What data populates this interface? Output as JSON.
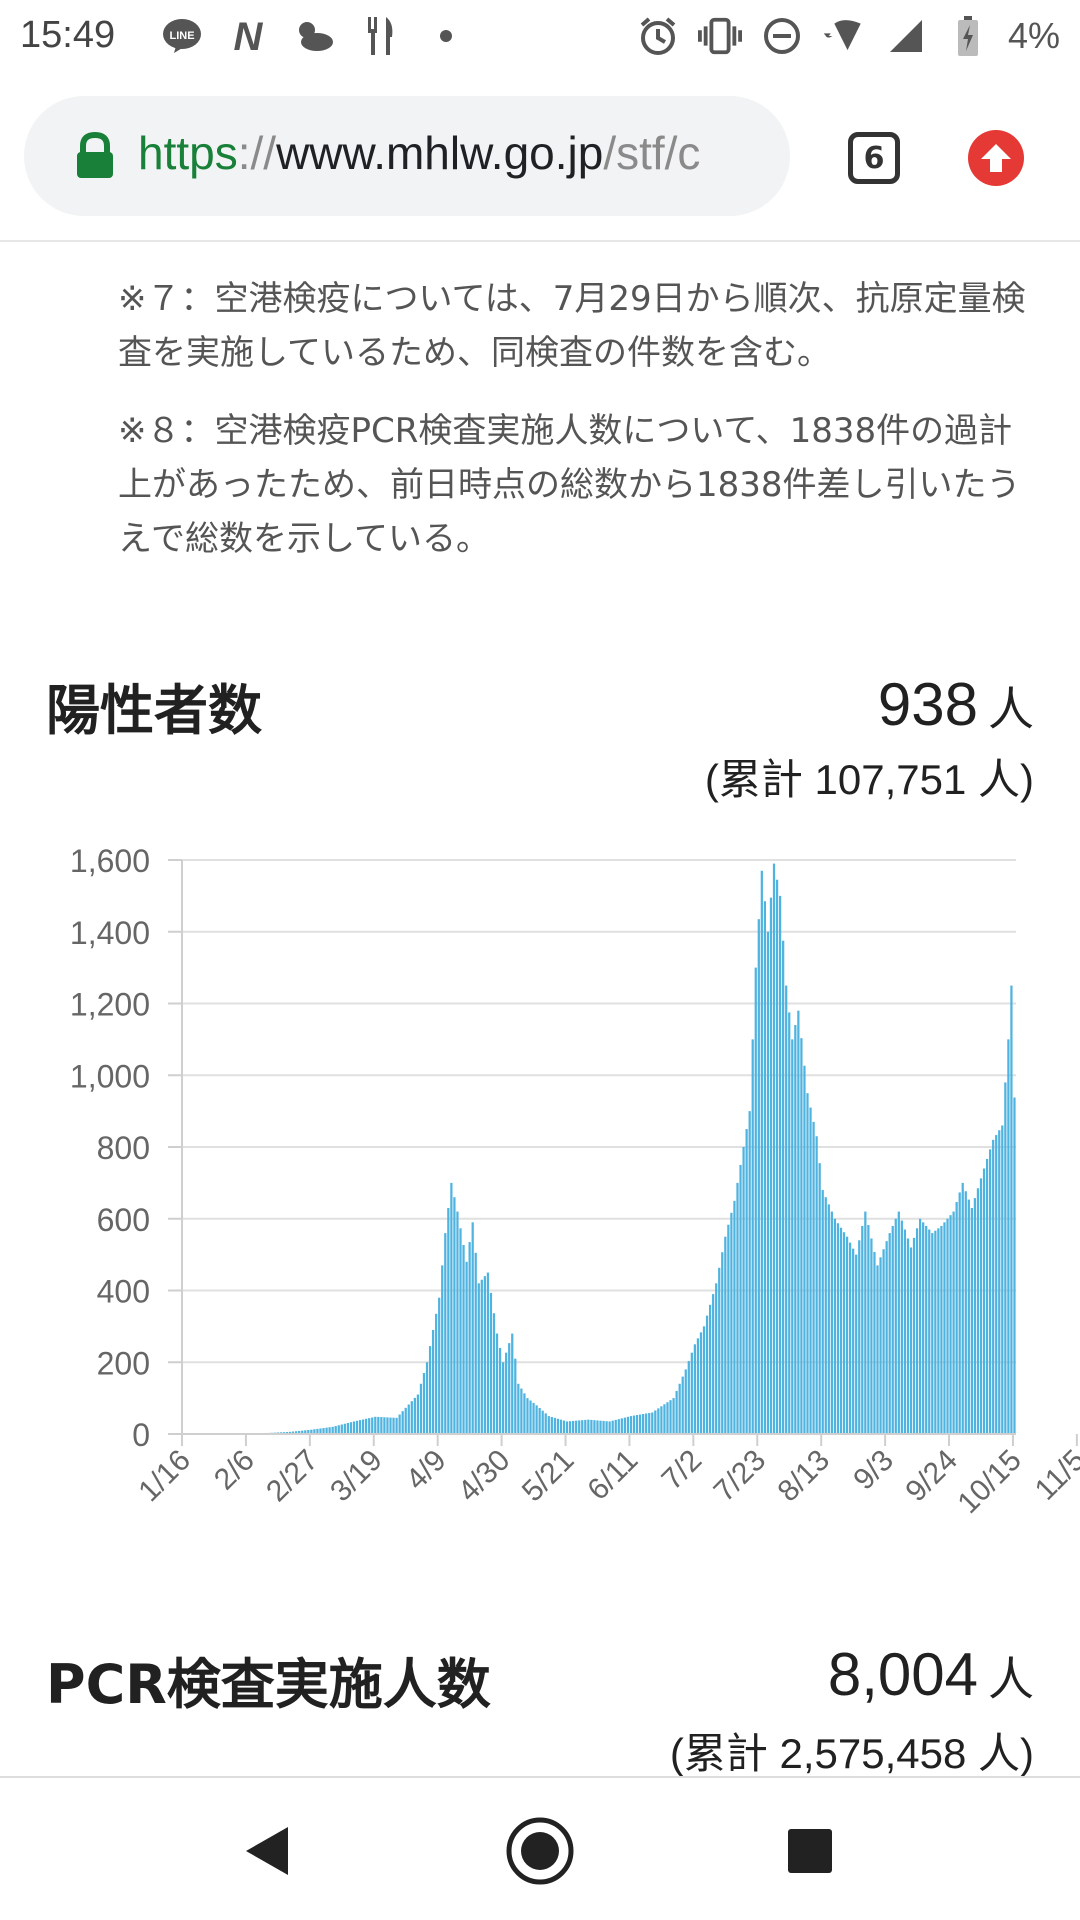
{
  "status_bar": {
    "time": "15:49",
    "left_icons": [
      "line-icon",
      "n-icon",
      "weather-icon",
      "restaurant-icon",
      "dot-icon"
    ],
    "right_icons": [
      "alarm-icon",
      "vibrate-icon",
      "dnd-icon",
      "wifi-icon",
      "signal-icon",
      "battery-icon"
    ],
    "battery": "4%"
  },
  "browser": {
    "url_scheme": "https",
    "url_sep": "://",
    "url_host": "www.mhlw.go.jp",
    "url_rest": "/stf/c",
    "tab_count": "6",
    "accent_secure": "#188038",
    "update_color": "#e53935"
  },
  "notes": [
    "※７：空港検疫については、7月29日から順次、抗原定量検査を実施しているため、同検査の件数を含む。",
    "※８：空港検疫PCR検査実施人数について、1838件の過計上があったため、前日時点の総数から1838件差し引いたうえで総数を示している。"
  ],
  "positives": {
    "title": "陽性者数",
    "value": "938",
    "unit": "人",
    "cumulative": "(累計 107,751 人)"
  },
  "pcr": {
    "title": "PCR検査実施人数",
    "value": "8,004",
    "unit": "人",
    "cumulative": "(累計 2,575,458 人)"
  },
  "chart_data": {
    "type": "bar",
    "color": "#4fb3e0",
    "title": "",
    "xlabel": "",
    "ylabel": "",
    "ylim": [
      0,
      1600
    ],
    "y_ticks": [
      "0",
      "200",
      "400",
      "600",
      "800",
      "1,000",
      "1,200",
      "1,400",
      "1,600"
    ],
    "x_tick_labels": [
      "1/16",
      "2/6",
      "2/27",
      "3/19",
      "4/9",
      "4/30",
      "5/21",
      "6/11",
      "7/2",
      "7/23",
      "8/13",
      "9/3",
      "9/24",
      "10/15",
      "11/5"
    ],
    "grid": true,
    "anchor_values": [
      [
        0,
        0
      ],
      [
        14,
        1
      ],
      [
        28,
        3
      ],
      [
        35,
        6
      ],
      [
        42,
        12
      ],
      [
        49,
        20
      ],
      [
        56,
        35
      ],
      [
        63,
        48
      ],
      [
        70,
        45
      ],
      [
        77,
        110
      ],
      [
        80,
        200
      ],
      [
        84,
        380
      ],
      [
        86,
        560
      ],
      [
        88,
        700
      ],
      [
        90,
        620
      ],
      [
        93,
        480
      ],
      [
        95,
        590
      ],
      [
        97,
        420
      ],
      [
        100,
        450
      ],
      [
        103,
        280
      ],
      [
        105,
        200
      ],
      [
        108,
        280
      ],
      [
        110,
        140
      ],
      [
        113,
        100
      ],
      [
        116,
        80
      ],
      [
        120,
        50
      ],
      [
        126,
        35
      ],
      [
        133,
        40
      ],
      [
        140,
        35
      ],
      [
        147,
        50
      ],
      [
        154,
        60
      ],
      [
        161,
        100
      ],
      [
        165,
        180
      ],
      [
        168,
        250
      ],
      [
        171,
        300
      ],
      [
        175,
        420
      ],
      [
        178,
        550
      ],
      [
        181,
        650
      ],
      [
        184,
        800
      ],
      [
        186,
        900
      ],
      [
        188,
        1300
      ],
      [
        190,
        1570
      ],
      [
        192,
        1400
      ],
      [
        194,
        1590
      ],
      [
        196,
        1500
      ],
      [
        198,
        1250
      ],
      [
        200,
        1100
      ],
      [
        202,
        1180
      ],
      [
        205,
        950
      ],
      [
        208,
        830
      ],
      [
        210,
        680
      ],
      [
        214,
        600
      ],
      [
        218,
        550
      ],
      [
        221,
        500
      ],
      [
        224,
        620
      ],
      [
        228,
        470
      ],
      [
        232,
        560
      ],
      [
        235,
        620
      ],
      [
        239,
        520
      ],
      [
        242,
        600
      ],
      [
        246,
        560
      ],
      [
        249,
        580
      ],
      [
        253,
        620
      ],
      [
        256,
        700
      ],
      [
        259,
        630
      ],
      [
        263,
        740
      ],
      [
        266,
        820
      ],
      [
        269,
        860
      ],
      [
        271,
        1100
      ],
      [
        272,
        1250
      ],
      [
        273,
        938
      ]
    ]
  }
}
